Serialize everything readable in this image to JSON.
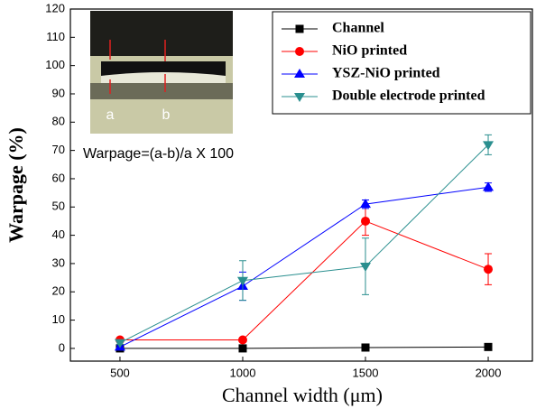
{
  "chart_data": {
    "type": "line",
    "x_label": "Channel width (μm)",
    "y_label": "Warpage (%)",
    "x": [
      500,
      1000,
      1500,
      2000
    ],
    "xlim": [
      298,
      2180
    ],
    "xticks": [
      500,
      1000,
      1500,
      2000
    ],
    "ylim": [
      -4.5,
      120
    ],
    "yticks": [
      0,
      10,
      20,
      30,
      40,
      50,
      60,
      70,
      80,
      90,
      100,
      110,
      120
    ],
    "legend": "upper right",
    "annotations": [
      "a",
      "b",
      "Warpage=(a-b)/a X 100"
    ],
    "series": [
      {
        "name": "Channel",
        "color": "#000000",
        "marker": "square",
        "values": [
          0,
          0,
          0.3,
          0.5
        ]
      },
      {
        "name": "NiO printed",
        "color": "#ff0000",
        "marker": "circle",
        "values": [
          3,
          3,
          45,
          28
        ],
        "errors": [
          0.5,
          0.5,
          5,
          5.5
        ]
      },
      {
        "name": "YSZ-NiO  printed",
        "color": "#0000ff",
        "marker": "triangle-up",
        "values": [
          0.5,
          22,
          51,
          57
        ],
        "errors": [
          0.5,
          5,
          1.5,
          1.5
        ]
      },
      {
        "name": "Double electrode printed",
        "color": "#2a8f8f",
        "marker": "triangle-down",
        "values": [
          2,
          24,
          29,
          72
        ],
        "errors": [
          0.5,
          7,
          10,
          3.5
        ]
      }
    ]
  }
}
